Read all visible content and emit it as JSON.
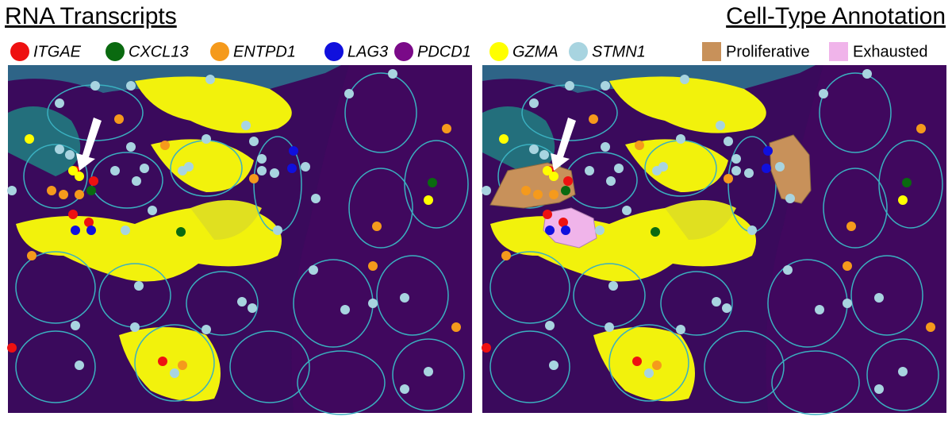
{
  "panels": [
    {
      "title": "RNA Transcripts"
    },
    {
      "title": "Cell-Type Annotation"
    }
  ],
  "legend": {
    "transcripts": [
      {
        "label": "ITGAE",
        "color": "#ee1111"
      },
      {
        "label": "CXCL13",
        "color": "#0a6a10"
      },
      {
        "label": "ENTPD1",
        "color": "#f59a1c"
      },
      {
        "label": "LAG3",
        "color": "#1010dd"
      },
      {
        "label": "PDCD1",
        "color": "#7a0a88"
      },
      {
        "label": "GZMA",
        "color": "#ffff00"
      },
      {
        "label": "STMN1",
        "color": "#a8d4e0"
      }
    ],
    "annotations": [
      {
        "label": "Proliferative",
        "color": "#c8915a"
      },
      {
        "label": "Exhausted",
        "color": "#f0b4ea"
      }
    ]
  }
}
